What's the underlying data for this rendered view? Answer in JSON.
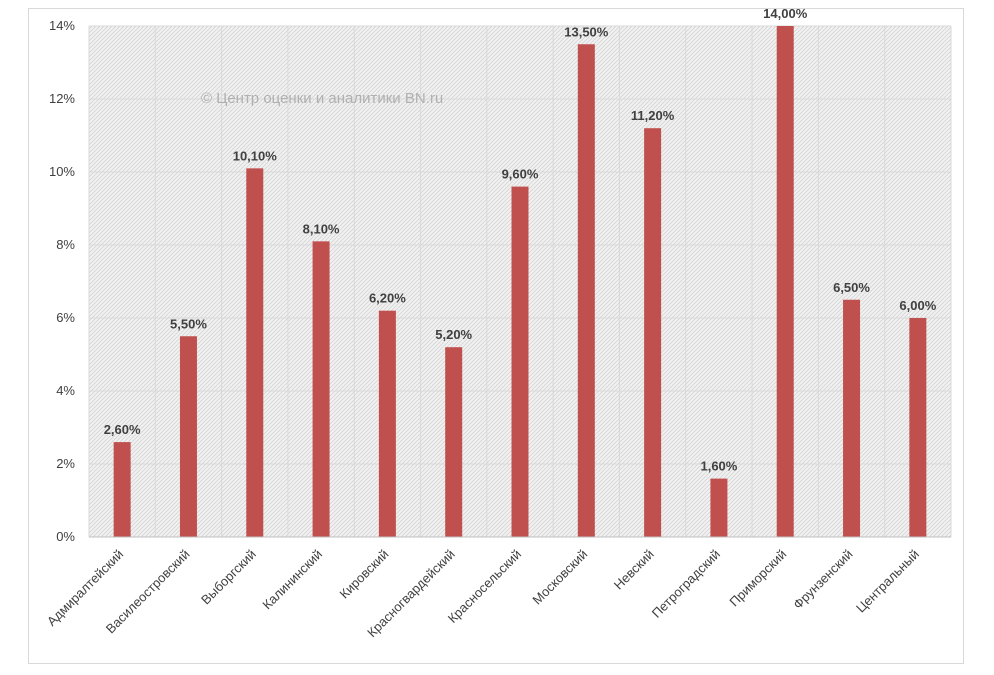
{
  "chart_data": {
    "type": "bar",
    "title": "",
    "xlabel": "",
    "ylabel": "",
    "watermark": "© Центр оценки и аналитики BN.ru",
    "categories": [
      "Адмиралтейский",
      "Василеостровский",
      "Выборгский",
      "Калининский",
      "Кировский",
      "Красногвардейский",
      "Красносельский",
      "Московский",
      "Невский",
      "Петроградский",
      "Приморский",
      "Фрунзенский",
      "Центральный"
    ],
    "values": [
      2.6,
      5.5,
      10.1,
      8.1,
      6.2,
      5.2,
      9.6,
      13.5,
      11.2,
      1.6,
      14.0,
      6.5,
      6.0
    ],
    "data_labels": [
      "2,60%",
      "5,50%",
      "10,10%",
      "8,10%",
      "6,20%",
      "5,20%",
      "9,60%",
      "13,50%",
      "11,20%",
      "1,60%",
      "14,00%",
      "6,50%",
      "6,00%"
    ],
    "ylim": [
      0,
      14
    ],
    "yticks": [
      0,
      2,
      4,
      6,
      8,
      10,
      12,
      14
    ],
    "ytick_labels": [
      "0%",
      "2%",
      "4%",
      "6%",
      "8%",
      "10%",
      "12%",
      "14%"
    ],
    "grid": true,
    "legend": "none",
    "bar_color": "#c0504d",
    "plot_background": "hatched-gray"
  }
}
